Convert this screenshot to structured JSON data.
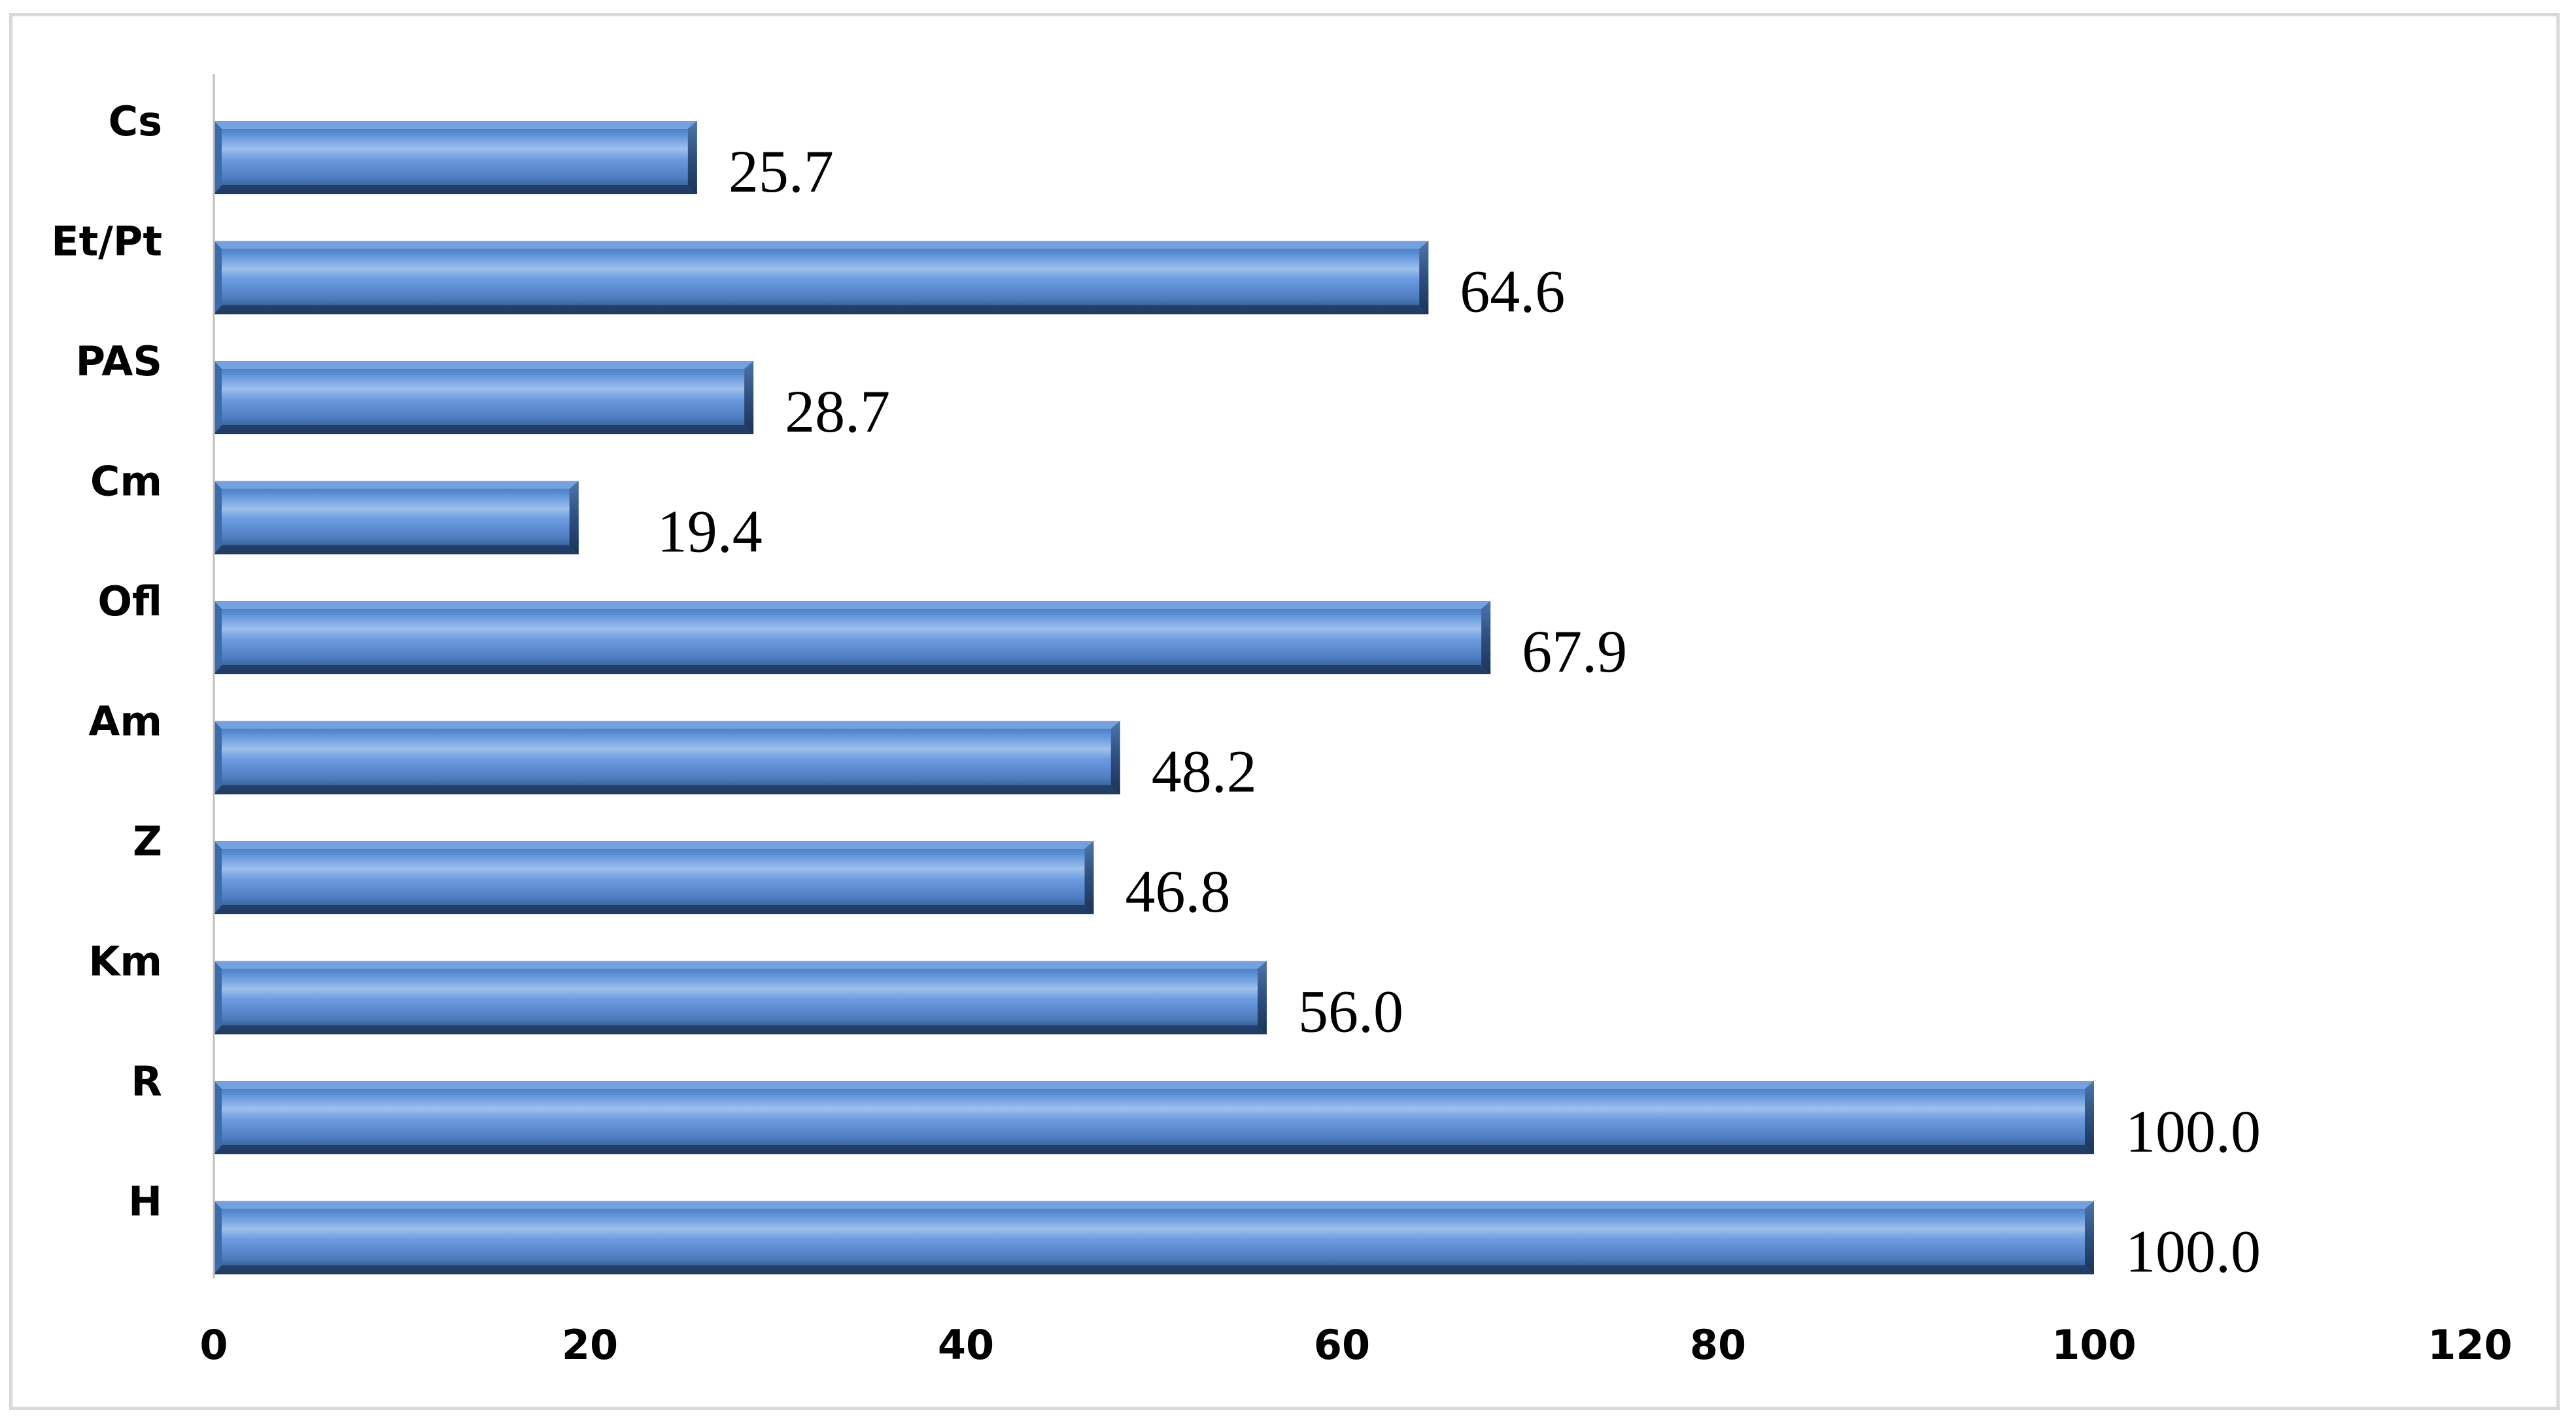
{
  "chart_data": {
    "type": "bar",
    "orientation": "horizontal",
    "categories": [
      "Cs",
      "Et/Pt",
      "PAS",
      "Cm",
      "Ofl",
      "Am",
      "Z",
      "Km",
      "R",
      "H"
    ],
    "values": [
      25.7,
      64.6,
      28.7,
      19.4,
      67.9,
      48.2,
      46.8,
      56.0,
      100.0,
      100.0
    ],
    "data_labels": [
      "25.7",
      "64.6",
      "28.7",
      "19.4",
      "67.9",
      "48.2",
      "46.8",
      "56.0",
      "100.0",
      "100.0"
    ],
    "x_ticks": [
      "0",
      "20",
      "40",
      "60",
      "80",
      "100",
      "120"
    ],
    "xlim": [
      0,
      120
    ],
    "title": "",
    "xlabel": "",
    "ylabel": "",
    "grid": false,
    "legend": "none",
    "colors": {
      "bar_face": "#5b8fd6",
      "bar_highlight": "#9ec0ee",
      "bar_dark": "#2e4f7d",
      "bar_bevel": "#1f3a62"
    }
  }
}
